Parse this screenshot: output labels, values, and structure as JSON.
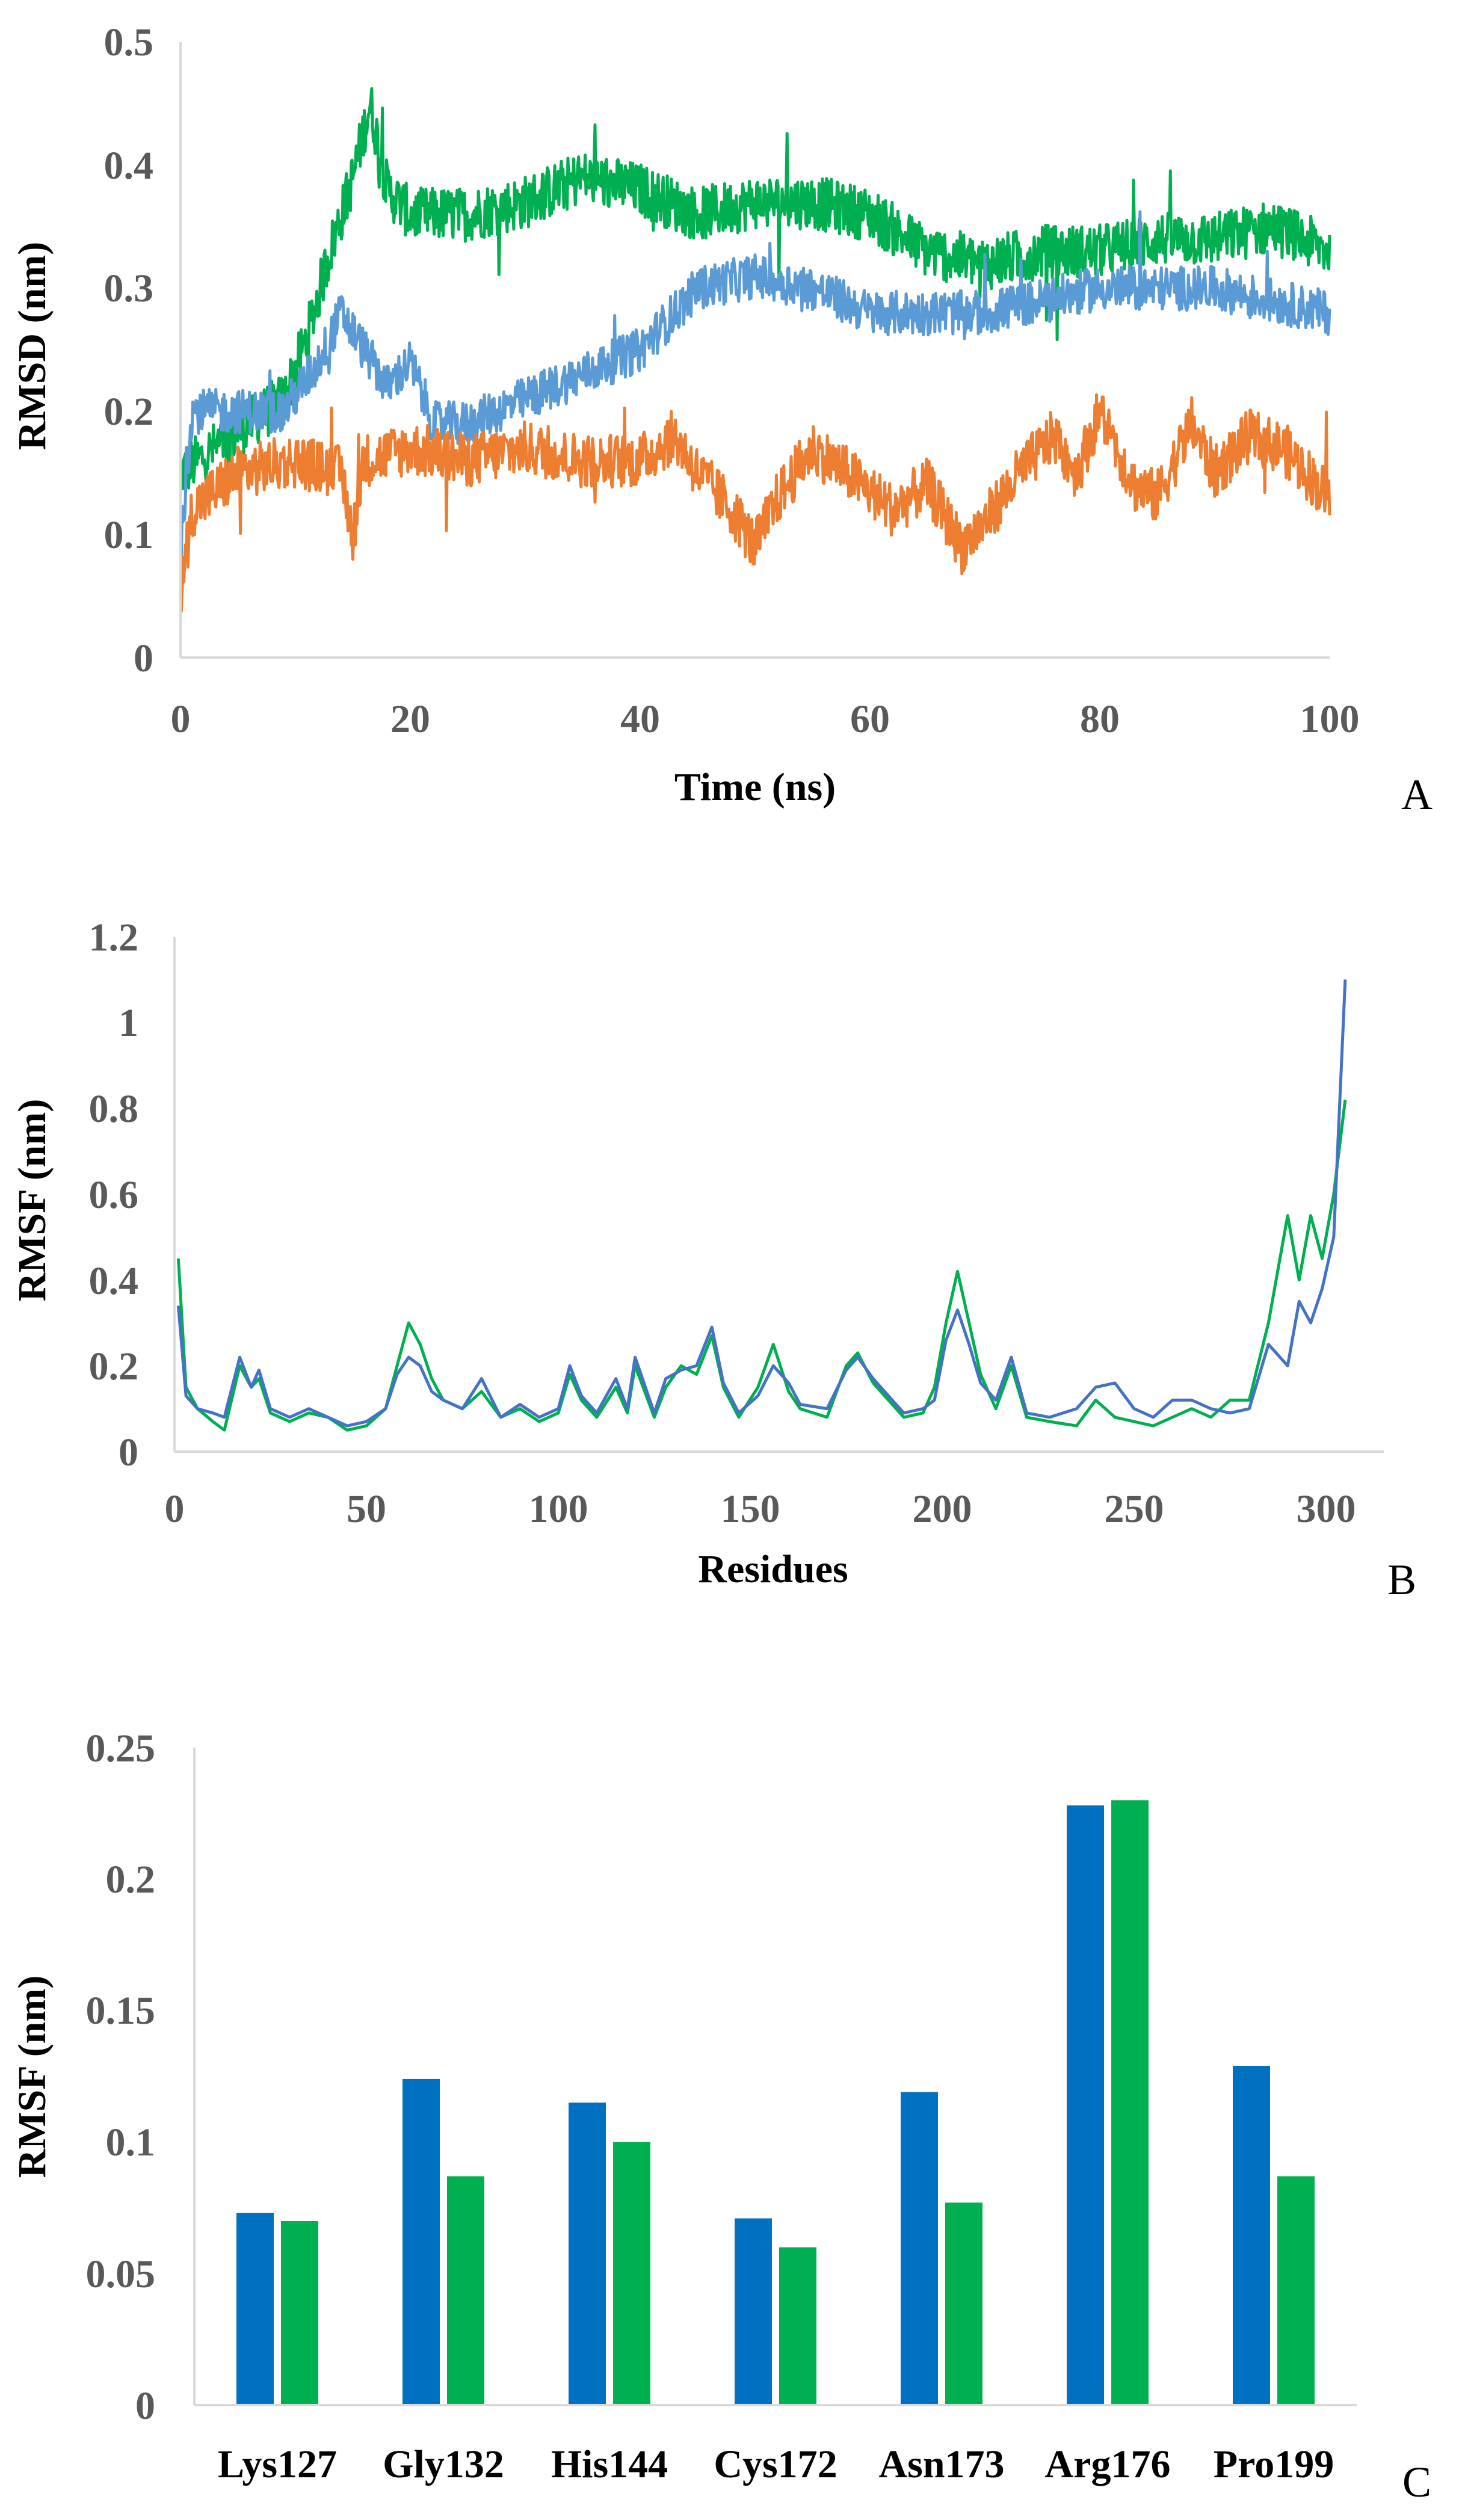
{
  "chart_data": [
    {
      "panel": "A",
      "type": "line",
      "xlabel": "Time (ns)",
      "ylabel": "RMSD (nm)",
      "xlim": [
        0,
        100
      ],
      "ylim": [
        0,
        0.5
      ],
      "xticks": [
        "0",
        "20",
        "40",
        "60",
        "80",
        "100"
      ],
      "yticks": [
        "0",
        "0.1",
        "0.2",
        "0.3",
        "0.4",
        "0.5"
      ],
      "series": [
        {
          "name": "green",
          "color": "#00b050",
          "noise": 0.022,
          "points": [
            [
              0,
              0.15
            ],
            [
              3,
              0.17
            ],
            [
              6,
              0.19
            ],
            [
              9,
              0.21
            ],
            [
              11,
              0.26
            ],
            [
              13,
              0.33
            ],
            [
              15,
              0.39
            ],
            [
              16.5,
              0.45
            ],
            [
              18,
              0.38
            ],
            [
              20,
              0.36
            ],
            [
              25,
              0.36
            ],
            [
              30,
              0.37
            ],
            [
              35,
              0.39
            ],
            [
              40,
              0.38
            ],
            [
              45,
              0.36
            ],
            [
              50,
              0.37
            ],
            [
              55,
              0.37
            ],
            [
              60,
              0.36
            ],
            [
              65,
              0.33
            ],
            [
              70,
              0.32
            ],
            [
              75,
              0.33
            ],
            [
              80,
              0.33
            ],
            [
              85,
              0.34
            ],
            [
              90,
              0.34
            ],
            [
              95,
              0.35
            ],
            [
              100,
              0.33
            ]
          ]
        },
        {
          "name": "blue",
          "color": "#5b9bd5",
          "noise": 0.018,
          "points": [
            [
              0,
              0.09
            ],
            [
              1,
              0.2
            ],
            [
              5,
              0.2
            ],
            [
              9,
              0.2
            ],
            [
              12,
              0.24
            ],
            [
              14,
              0.28
            ],
            [
              16,
              0.25
            ],
            [
              18,
              0.22
            ],
            [
              20,
              0.24
            ],
            [
              22,
              0.19
            ],
            [
              25,
              0.19
            ],
            [
              30,
              0.21
            ],
            [
              35,
              0.23
            ],
            [
              40,
              0.25
            ],
            [
              45,
              0.3
            ],
            [
              50,
              0.31
            ],
            [
              55,
              0.3
            ],
            [
              60,
              0.28
            ],
            [
              65,
              0.28
            ],
            [
              70,
              0.28
            ],
            [
              75,
              0.29
            ],
            [
              80,
              0.3
            ],
            [
              85,
              0.3
            ],
            [
              90,
              0.3
            ],
            [
              95,
              0.29
            ],
            [
              100,
              0.28
            ]
          ]
        },
        {
          "name": "orange",
          "color": "#ed7d31",
          "noise": 0.022,
          "points": [
            [
              0,
              0.05
            ],
            [
              1,
              0.12
            ],
            [
              5,
              0.15
            ],
            [
              10,
              0.16
            ],
            [
              14,
              0.15
            ],
            [
              15,
              0.1
            ],
            [
              16,
              0.16
            ],
            [
              20,
              0.17
            ],
            [
              25,
              0.16
            ],
            [
              30,
              0.17
            ],
            [
              35,
              0.16
            ],
            [
              40,
              0.16
            ],
            [
              43,
              0.18
            ],
            [
              45,
              0.15
            ],
            [
              48,
              0.12
            ],
            [
              50,
              0.09
            ],
            [
              52,
              0.13
            ],
            [
              55,
              0.17
            ],
            [
              58,
              0.15
            ],
            [
              62,
              0.12
            ],
            [
              65,
              0.14
            ],
            [
              68,
              0.09
            ],
            [
              70,
              0.11
            ],
            [
              73,
              0.15
            ],
            [
              76,
              0.18
            ],
            [
              78,
              0.15
            ],
            [
              80,
              0.2
            ],
            [
              83,
              0.14
            ],
            [
              85,
              0.13
            ],
            [
              88,
              0.19
            ],
            [
              90,
              0.15
            ],
            [
              93,
              0.18
            ],
            [
              96,
              0.17
            ],
            [
              100,
              0.13
            ]
          ]
        }
      ]
    },
    {
      "panel": "B",
      "type": "line",
      "xlabel": "Residues",
      "ylabel": "RMSF (nm)",
      "xlim": [
        0,
        310
      ],
      "ylim": [
        0,
        1.2
      ],
      "xticks": [
        "0",
        "50",
        "100",
        "150",
        "200",
        "250",
        "300"
      ],
      "yticks": [
        "0",
        "0.2",
        "0.4",
        "0.6",
        "0.8",
        "1",
        "1.2"
      ],
      "series": [
        {
          "name": "green",
          "color": "#00b050",
          "points": [
            [
              1,
              0.45
            ],
            [
              3,
              0.15
            ],
            [
              6,
              0.1
            ],
            [
              10,
              0.07
            ],
            [
              13,
              0.05
            ],
            [
              17,
              0.2
            ],
            [
              20,
              0.15
            ],
            [
              22,
              0.17
            ],
            [
              25,
              0.09
            ],
            [
              30,
              0.07
            ],
            [
              35,
              0.09
            ],
            [
              40,
              0.08
            ],
            [
              45,
              0.05
            ],
            [
              50,
              0.06
            ],
            [
              55,
              0.1
            ],
            [
              58,
              0.2
            ],
            [
              61,
              0.3
            ],
            [
              64,
              0.25
            ],
            [
              67,
              0.17
            ],
            [
              70,
              0.12
            ],
            [
              75,
              0.1
            ],
            [
              80,
              0.14
            ],
            [
              85,
              0.08
            ],
            [
              90,
              0.1
            ],
            [
              95,
              0.07
            ],
            [
              100,
              0.09
            ],
            [
              103,
              0.18
            ],
            [
              106,
              0.12
            ],
            [
              110,
              0.08
            ],
            [
              115,
              0.15
            ],
            [
              118,
              0.09
            ],
            [
              120,
              0.2
            ],
            [
              125,
              0.08
            ],
            [
              128,
              0.15
            ],
            [
              132,
              0.2
            ],
            [
              136,
              0.18
            ],
            [
              140,
              0.27
            ],
            [
              143,
              0.15
            ],
            [
              147,
              0.08
            ],
            [
              152,
              0.15
            ],
            [
              156,
              0.25
            ],
            [
              160,
              0.14
            ],
            [
              163,
              0.1
            ],
            [
              170,
              0.08
            ],
            [
              175,
              0.2
            ],
            [
              178,
              0.23
            ],
            [
              182,
              0.16
            ],
            [
              186,
              0.12
            ],
            [
              190,
              0.08
            ],
            [
              195,
              0.09
            ],
            [
              198,
              0.15
            ],
            [
              201,
              0.3
            ],
            [
              204,
              0.42
            ],
            [
              207,
              0.3
            ],
            [
              210,
              0.18
            ],
            [
              214,
              0.1
            ],
            [
              218,
              0.2
            ],
            [
              222,
              0.08
            ],
            [
              228,
              0.07
            ],
            [
              235,
              0.06
            ],
            [
              240,
              0.12
            ],
            [
              245,
              0.08
            ],
            [
              250,
              0.07
            ],
            [
              255,
              0.06
            ],
            [
              260,
              0.08
            ],
            [
              265,
              0.1
            ],
            [
              270,
              0.08
            ],
            [
              275,
              0.12
            ],
            [
              280,
              0.12
            ],
            [
              285,
              0.3
            ],
            [
              290,
              0.55
            ],
            [
              293,
              0.4
            ],
            [
              296,
              0.55
            ],
            [
              299,
              0.45
            ],
            [
              302,
              0.6
            ],
            [
              305,
              0.82
            ]
          ]
        },
        {
          "name": "blue",
          "color": "#4472c4",
          "points": [
            [
              1,
              0.34
            ],
            [
              3,
              0.13
            ],
            [
              6,
              0.1
            ],
            [
              10,
              0.09
            ],
            [
              13,
              0.08
            ],
            [
              17,
              0.22
            ],
            [
              20,
              0.15
            ],
            [
              22,
              0.19
            ],
            [
              25,
              0.1
            ],
            [
              30,
              0.08
            ],
            [
              35,
              0.1
            ],
            [
              40,
              0.08
            ],
            [
              45,
              0.06
            ],
            [
              50,
              0.07
            ],
            [
              55,
              0.1
            ],
            [
              58,
              0.18
            ],
            [
              61,
              0.22
            ],
            [
              64,
              0.2
            ],
            [
              67,
              0.14
            ],
            [
              70,
              0.12
            ],
            [
              75,
              0.1
            ],
            [
              80,
              0.17
            ],
            [
              85,
              0.08
            ],
            [
              90,
              0.11
            ],
            [
              95,
              0.08
            ],
            [
              100,
              0.1
            ],
            [
              103,
              0.2
            ],
            [
              106,
              0.13
            ],
            [
              110,
              0.09
            ],
            [
              115,
              0.17
            ],
            [
              118,
              0.1
            ],
            [
              120,
              0.22
            ],
            [
              125,
              0.09
            ],
            [
              128,
              0.17
            ],
            [
              132,
              0.19
            ],
            [
              136,
              0.2
            ],
            [
              140,
              0.29
            ],
            [
              143,
              0.16
            ],
            [
              147,
              0.09
            ],
            [
              152,
              0.13
            ],
            [
              156,
              0.2
            ],
            [
              160,
              0.16
            ],
            [
              163,
              0.11
            ],
            [
              170,
              0.1
            ],
            [
              175,
              0.19
            ],
            [
              178,
              0.22
            ],
            [
              182,
              0.17
            ],
            [
              186,
              0.13
            ],
            [
              190,
              0.09
            ],
            [
              195,
              0.1
            ],
            [
              198,
              0.12
            ],
            [
              201,
              0.26
            ],
            [
              204,
              0.33
            ],
            [
              207,
              0.25
            ],
            [
              210,
              0.16
            ],
            [
              214,
              0.12
            ],
            [
              218,
              0.22
            ],
            [
              222,
              0.09
            ],
            [
              228,
              0.08
            ],
            [
              235,
              0.1
            ],
            [
              240,
              0.15
            ],
            [
              245,
              0.16
            ],
            [
              250,
              0.1
            ],
            [
              255,
              0.08
            ],
            [
              260,
              0.12
            ],
            [
              265,
              0.12
            ],
            [
              270,
              0.1
            ],
            [
              275,
              0.09
            ],
            [
              280,
              0.1
            ],
            [
              285,
              0.25
            ],
            [
              290,
              0.2
            ],
            [
              293,
              0.35
            ],
            [
              296,
              0.3
            ],
            [
              299,
              0.38
            ],
            [
              302,
              0.5
            ],
            [
              305,
              1.1
            ]
          ]
        }
      ]
    },
    {
      "panel": "C",
      "type": "bar",
      "ylabel": "RMSF (nm)",
      "ylim": [
        0,
        0.25
      ],
      "yticks": [
        "0",
        "0.05",
        "0.1",
        "0.15",
        "0.2",
        "0.25"
      ],
      "categories": [
        "Lys127",
        "Gly132",
        "His144",
        "Cys172",
        "Asn173",
        "Arg176",
        "Pro199"
      ],
      "series": [
        {
          "name": "blue",
          "color": "#0070c0",
          "values": [
            0.073,
            0.124,
            0.115,
            0.071,
            0.119,
            0.228,
            0.129
          ]
        },
        {
          "name": "green",
          "color": "#00b050",
          "values": [
            0.07,
            0.087,
            0.1,
            0.06,
            0.077,
            0.23,
            0.087
          ]
        }
      ]
    }
  ]
}
